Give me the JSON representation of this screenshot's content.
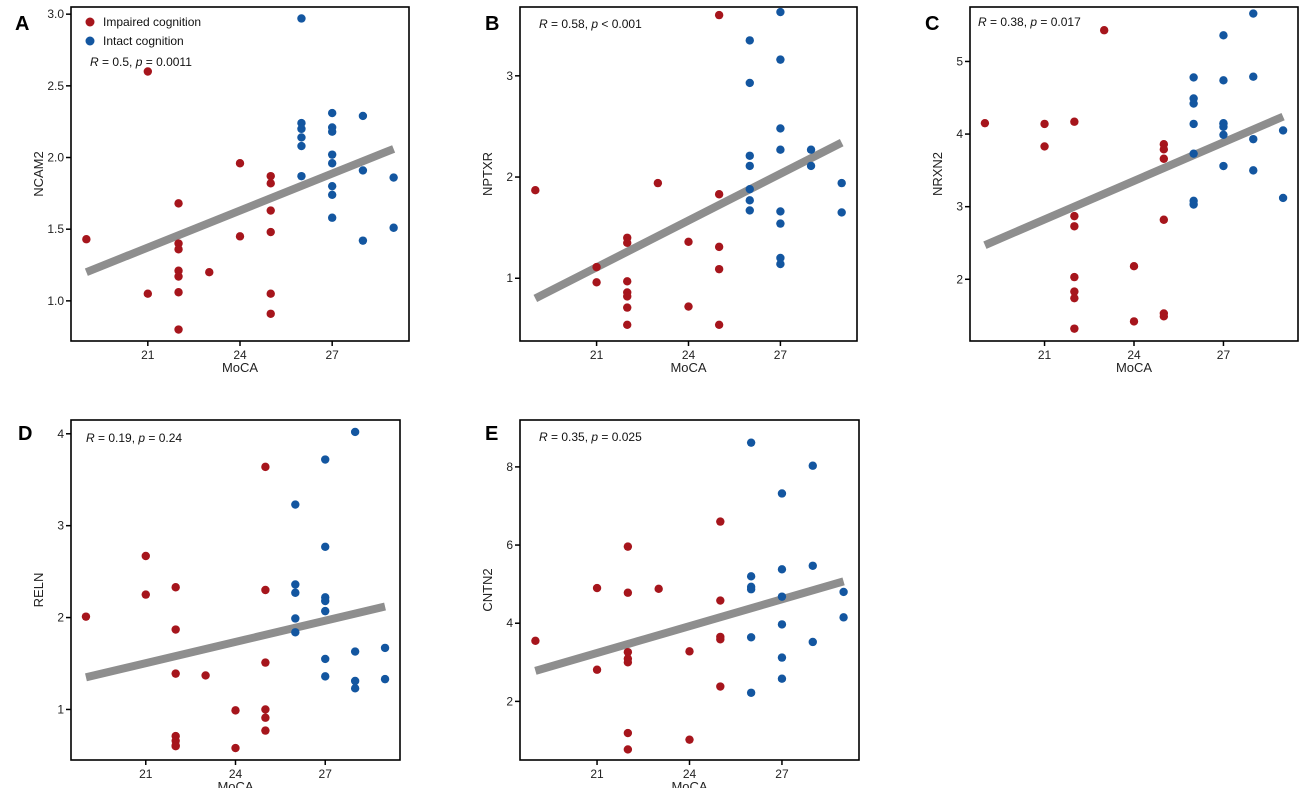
{
  "colors": {
    "impaired": "#a6151c",
    "intact": "#1356a0",
    "fit": "#8e8e8e",
    "axis": "#000000"
  },
  "legend": [
    {
      "label": "Impaired cognition",
      "color_key": "impaired"
    },
    {
      "label": "Intact cognition",
      "color_key": "intact"
    }
  ],
  "chart_data": [
    {
      "panel": "A",
      "type": "scatter",
      "xlabel": "MoCA",
      "ylabel": "NCAM2",
      "xlim": [
        18.5,
        29.5
      ],
      "ylim": [
        0.72,
        3.05
      ],
      "xticks": [
        21,
        24,
        27
      ],
      "yticks": [
        1.0,
        1.5,
        2.0,
        2.5,
        3.0
      ],
      "ytick_labels": [
        "1.0",
        "1.5",
        "2.0",
        "2.5",
        "3.0"
      ],
      "annotation": {
        "r": "0.5",
        "p_op": "=",
        "p": "0.0011"
      },
      "fit": {
        "x": [
          19,
          29
        ],
        "y": [
          1.2,
          2.06
        ]
      },
      "series": [
        {
          "name": "Impaired cognition",
          "color_key": "impaired",
          "x": [
            19,
            21,
            21,
            22,
            22,
            22,
            22,
            22,
            22,
            22,
            23,
            24,
            24,
            25,
            25,
            25,
            25,
            25,
            25
          ],
          "y": [
            1.43,
            2.6,
            1.05,
            1.68,
            1.4,
            1.36,
            1.21,
            1.17,
            1.06,
            0.8,
            1.2,
            1.96,
            1.45,
            1.87,
            1.82,
            1.63,
            1.48,
            1.05,
            0.91
          ]
        },
        {
          "name": "Intact cognition",
          "color_key": "intact",
          "x": [
            26,
            26,
            26,
            26,
            26,
            26,
            27,
            27,
            27,
            27,
            27,
            27,
            27,
            27,
            28,
            28,
            28,
            29,
            29
          ],
          "y": [
            2.97,
            2.24,
            2.2,
            2.14,
            2.08,
            1.87,
            2.31,
            2.21,
            2.18,
            2.02,
            1.96,
            1.8,
            1.74,
            1.58,
            2.29,
            1.91,
            1.42,
            1.86,
            1.51
          ]
        }
      ]
    },
    {
      "panel": "B",
      "type": "scatter",
      "xlabel": "MoCA",
      "ylabel": "NPTXR",
      "xlim": [
        18.5,
        29.5
      ],
      "ylim": [
        0.38,
        3.68
      ],
      "xticks": [
        21,
        24,
        27
      ],
      "yticks": [
        1,
        2,
        3
      ],
      "ytick_labels": [
        "1",
        "2",
        "3"
      ],
      "annotation": {
        "r": "0.58",
        "p_op": "<",
        "p": "0.001"
      },
      "fit": {
        "x": [
          19,
          29
        ],
        "y": [
          0.8,
          2.34
        ]
      },
      "series": [
        {
          "name": "Impaired cognition",
          "color_key": "impaired",
          "x": [
            19,
            21,
            21,
            22,
            22,
            22,
            22,
            22,
            22,
            22,
            23,
            24,
            24,
            25,
            25,
            25,
            25,
            25
          ],
          "y": [
            1.87,
            1.11,
            0.96,
            1.4,
            1.35,
            0.97,
            0.86,
            0.82,
            0.71,
            0.54,
            1.94,
            1.36,
            0.72,
            3.6,
            1.83,
            1.31,
            1.09,
            0.54
          ]
        },
        {
          "name": "Intact cognition",
          "color_key": "intact",
          "x": [
            26,
            26,
            26,
            26,
            26,
            26,
            26,
            27,
            27,
            27,
            27,
            27,
            27,
            27,
            27,
            28,
            28,
            29,
            29
          ],
          "y": [
            3.35,
            2.93,
            2.21,
            2.11,
            1.88,
            1.77,
            1.67,
            3.63,
            3.16,
            2.48,
            2.27,
            1.66,
            1.54,
            1.2,
            1.14,
            2.27,
            2.11,
            1.94,
            1.65
          ]
        }
      ]
    },
    {
      "panel": "C",
      "type": "scatter",
      "xlabel": "MoCA",
      "ylabel": "NRXN2",
      "xlim": [
        18.5,
        29.5
      ],
      "ylim": [
        1.15,
        5.75
      ],
      "xticks": [
        21,
        24,
        27
      ],
      "yticks": [
        2,
        3,
        4,
        5
      ],
      "ytick_labels": [
        "2",
        "3",
        "4",
        "5"
      ],
      "annotation": {
        "r": "0.38",
        "p_op": "=",
        "p": "0.017"
      },
      "fit": {
        "x": [
          19,
          29
        ],
        "y": [
          2.47,
          4.24
        ]
      },
      "series": [
        {
          "name": "Impaired cognition",
          "color_key": "impaired",
          "x": [
            19,
            21,
            21,
            22,
            22,
            22,
            22,
            22,
            22,
            22,
            23,
            24,
            24,
            25,
            25,
            25,
            25,
            25,
            25
          ],
          "y": [
            4.15,
            4.14,
            3.83,
            4.17,
            2.87,
            2.73,
            2.03,
            1.83,
            1.74,
            1.32,
            5.43,
            2.18,
            1.42,
            3.86,
            3.79,
            3.66,
            2.82,
            1.53,
            1.49
          ]
        },
        {
          "name": "Intact cognition",
          "color_key": "intact",
          "x": [
            26,
            26,
            26,
            26,
            26,
            26,
            26,
            27,
            27,
            27,
            27,
            27,
            27,
            27,
            28,
            28,
            28,
            28,
            29,
            29
          ],
          "y": [
            4.78,
            4.49,
            4.42,
            4.14,
            3.73,
            3.08,
            3.03,
            5.36,
            4.74,
            4.14,
            4.1,
            3.99,
            3.56,
            4.15,
            5.66,
            4.79,
            3.93,
            3.5,
            4.05,
            3.12
          ]
        }
      ]
    },
    {
      "panel": "D",
      "type": "scatter",
      "xlabel": "MoCA",
      "ylabel": "RELN",
      "xlim": [
        18.5,
        29.5
      ],
      "ylim": [
        0.45,
        4.15
      ],
      "xticks": [
        21,
        24,
        27
      ],
      "yticks": [
        1,
        2,
        3,
        4
      ],
      "ytick_labels": [
        "1",
        "2",
        "3",
        "4"
      ],
      "annotation": {
        "r": "0.19",
        "p_op": "=",
        "p": "0.24"
      },
      "fit": {
        "x": [
          19,
          29
        ],
        "y": [
          1.35,
          2.12
        ]
      },
      "series": [
        {
          "name": "Impaired cognition",
          "color_key": "impaired",
          "x": [
            19,
            21,
            21,
            22,
            22,
            22,
            22,
            22,
            22,
            22,
            23,
            24,
            24,
            25,
            25,
            25,
            25,
            25,
            25
          ],
          "y": [
            2.01,
            2.67,
            2.25,
            2.33,
            1.87,
            1.39,
            0.71,
            0.66,
            0.61,
            0.6,
            1.37,
            0.99,
            0.58,
            3.64,
            2.3,
            1.51,
            1.0,
            0.91,
            0.77
          ]
        },
        {
          "name": "Intact cognition",
          "color_key": "intact",
          "x": [
            26,
            26,
            26,
            26,
            26,
            27,
            27,
            27,
            27,
            27,
            27,
            27,
            28,
            28,
            28,
            28,
            29,
            29
          ],
          "y": [
            3.23,
            2.36,
            2.27,
            1.99,
            1.84,
            3.72,
            2.77,
            2.22,
            2.18,
            2.07,
            1.55,
            1.36,
            4.02,
            1.63,
            1.31,
            1.23,
            1.67,
            1.33
          ]
        }
      ]
    },
    {
      "panel": "E",
      "type": "scatter",
      "xlabel": "MoCA",
      "ylabel": "CNTN2",
      "xlim": [
        18.5,
        29.5
      ],
      "ylim": [
        0.5,
        9.2
      ],
      "xticks": [
        21,
        24,
        27
      ],
      "yticks": [
        2,
        4,
        6,
        8
      ],
      "ytick_labels": [
        "2",
        "4",
        "6",
        "8"
      ],
      "annotation": {
        "r": "0.35",
        "p_op": "=",
        "p": "0.025"
      },
      "fit": {
        "x": [
          19,
          29
        ],
        "y": [
          2.78,
          5.07
        ]
      },
      "series": [
        {
          "name": "Impaired cognition",
          "color_key": "impaired",
          "x": [
            19,
            21,
            21,
            22,
            22,
            22,
            22,
            22,
            22,
            22,
            23,
            24,
            24,
            25,
            25,
            25,
            25,
            25
          ],
          "y": [
            3.55,
            4.9,
            2.81,
            5.96,
            4.78,
            3.26,
            3.09,
            1.19,
            0.77,
            3.0,
            4.88,
            3.28,
            1.02,
            6.6,
            4.58,
            3.65,
            3.59,
            2.38
          ]
        },
        {
          "name": "Intact cognition",
          "color_key": "intact",
          "x": [
            26,
            26,
            26,
            26,
            26,
            26,
            27,
            27,
            27,
            27,
            27,
            27,
            28,
            28,
            28,
            29,
            29
          ],
          "y": [
            8.62,
            5.2,
            4.93,
            4.87,
            3.64,
            2.22,
            7.32,
            5.38,
            4.68,
            3.97,
            3.12,
            2.58,
            8.03,
            5.47,
            3.52,
            4.8,
            4.15
          ]
        }
      ]
    }
  ]
}
